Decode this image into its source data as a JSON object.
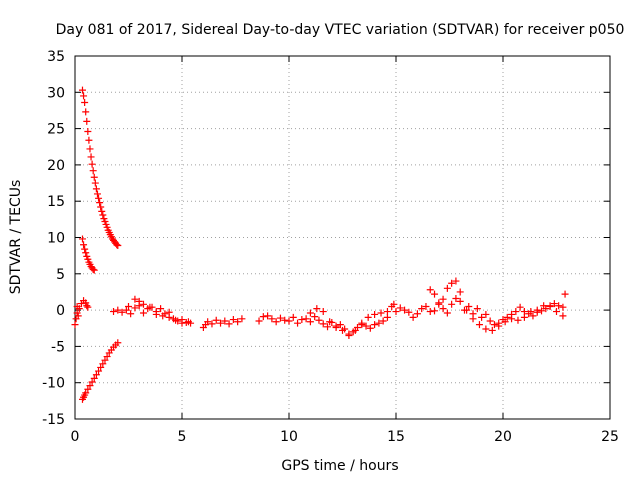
{
  "chart_data": {
    "type": "scatter",
    "title": "Day 081 of 2017, Sidereal Day-to-day VTEC variation (SDTVAR) for receiver p050",
    "xlabel": "GPS time / hours",
    "ylabel": "SDTVAR / TECUs",
    "xlim": [
      0,
      25
    ],
    "ylim": [
      -15,
      35
    ],
    "xticks": [
      0,
      5,
      10,
      15,
      20,
      25
    ],
    "yticks": [
      -15,
      -10,
      -5,
      0,
      5,
      10,
      15,
      20,
      25,
      30,
      35
    ],
    "grid": true,
    "marker": "plus",
    "color": "#ff0000",
    "series": [
      {
        "name": "upper decay arc",
        "x": [
          0.35,
          0.4,
          0.45,
          0.5,
          0.55,
          0.6,
          0.65,
          0.7,
          0.75,
          0.8,
          0.85,
          0.9,
          0.95,
          1.0,
          1.05,
          1.1,
          1.15,
          1.2,
          1.25,
          1.3,
          1.35,
          1.4,
          1.45,
          1.5,
          1.55,
          1.6,
          1.65,
          1.7,
          1.75,
          1.8,
          1.85,
          1.9,
          1.95,
          2.0
        ],
        "y": [
          30.3,
          29.5,
          28.6,
          27.3,
          26.0,
          24.6,
          23.4,
          22.2,
          21.1,
          20.1,
          19.2,
          18.3,
          17.5,
          16.7,
          16.0,
          15.4,
          14.8,
          14.2,
          13.6,
          13.1,
          12.6,
          12.2,
          11.8,
          11.4,
          11.0,
          10.7,
          10.4,
          10.1,
          9.8,
          9.6,
          9.4,
          9.2,
          9.0,
          8.9
        ]
      },
      {
        "name": "middle decay arc",
        "x": [
          0.35,
          0.4,
          0.45,
          0.5,
          0.55,
          0.6,
          0.65,
          0.7,
          0.75,
          0.8,
          0.85,
          0.9
        ],
        "y": [
          9.8,
          9.0,
          8.4,
          7.9,
          7.4,
          7.0,
          6.6,
          6.3,
          6.0,
          5.8,
          5.6,
          5.5
        ]
      },
      {
        "name": "lower rising arc",
        "x": [
          0.35,
          0.4,
          0.45,
          0.5,
          0.6,
          0.7,
          0.8,
          0.9,
          1.0,
          1.1,
          1.2,
          1.3,
          1.4,
          1.5,
          1.6,
          1.7,
          1.8,
          1.9,
          2.0
        ],
        "y": [
          -12.3,
          -12.0,
          -11.7,
          -11.4,
          -10.9,
          -10.4,
          -9.9,
          -9.4,
          -8.9,
          -8.4,
          -7.9,
          -7.4,
          -6.9,
          -6.4,
          -5.9,
          -5.5,
          -5.1,
          -4.8,
          -4.5
        ]
      },
      {
        "name": "early scattered",
        "x": [
          0.0,
          0.05,
          0.1,
          0.1,
          0.15,
          0.2,
          0.3,
          0.4,
          0.5,
          0.55,
          0.6
        ],
        "y": [
          -2.0,
          -1.2,
          -0.4,
          0.5,
          -0.8,
          0.2,
          0.9,
          1.3,
          1.0,
          0.6,
          0.4
        ]
      },
      {
        "name": "main trace",
        "x": [
          1.8,
          2.0,
          2.2,
          2.4,
          2.5,
          2.6,
          2.8,
          3.0,
          3.2,
          3.4,
          3.6,
          3.8,
          4.0,
          4.2,
          4.4,
          4.6,
          4.8,
          5.0,
          5.2,
          5.4,
          6.0,
          6.1,
          6.2,
          6.4,
          6.6,
          6.8,
          7.0,
          7.2,
          7.4,
          7.6,
          7.8,
          8.6,
          8.8,
          9.0,
          9.2,
          9.4,
          9.6,
          9.8,
          10.0,
          10.2,
          10.4,
          10.6,
          10.8,
          11.0,
          11.2,
          11.4,
          11.6,
          11.8,
          12.0,
          12.2,
          12.4,
          12.6,
          12.8,
          13.0,
          13.2,
          13.4,
          13.6,
          13.8,
          14.0,
          14.2,
          14.4,
          14.6,
          14.8,
          15.0,
          15.2,
          15.4,
          15.6,
          15.8,
          16.0,
          16.2,
          16.4,
          16.6,
          16.8,
          17.0,
          17.2,
          17.4,
          17.6,
          17.8,
          18.0,
          18.2,
          18.4,
          18.6,
          18.8,
          19.0,
          19.2,
          19.4,
          19.6,
          19.8,
          20.0,
          20.2,
          20.4,
          20.6,
          20.8,
          21.0,
          21.2,
          21.4,
          21.6,
          21.8,
          22.0,
          22.2,
          22.4,
          22.6,
          22.8,
          22.9
        ],
        "y": [
          -0.2,
          0.0,
          -0.3,
          0.0,
          0.5,
          -0.5,
          0.3,
          0.6,
          -0.4,
          0.2,
          0.4,
          -0.6,
          0.2,
          -0.5,
          -0.3,
          -1.2,
          -1.5,
          -1.3,
          -1.7,
          -1.8,
          -2.4,
          -2.0,
          -1.6,
          -1.9,
          -1.4,
          -1.8,
          -1.5,
          -1.9,
          -1.3,
          -1.6,
          -1.2,
          -1.5,
          -0.9,
          -0.8,
          -1.2,
          -1.6,
          -1.1,
          -1.4,
          -1.5,
          -1.0,
          -1.8,
          -1.3,
          -1.2,
          -1.6,
          -0.9,
          -1.4,
          -1.9,
          -2.3,
          -1.7,
          -2.4,
          -2.0,
          -2.6,
          -3.3,
          -3.0,
          -2.4,
          -2.0,
          -2.2,
          -2.5,
          -2.0,
          -1.8,
          -1.5,
          -1.0,
          0.5,
          -0.2,
          0.3,
          0.0,
          -0.3,
          -1.0,
          -0.5,
          0.2,
          0.5,
          -0.2,
          -0.1,
          0.8,
          1.5,
          3.0,
          3.7,
          4.0,
          2.5,
          0.0,
          0.5,
          -0.5,
          0.2,
          -1.0,
          -0.6,
          -1.5,
          -2.0,
          -1.8,
          -1.3,
          -1.0,
          -0.6,
          -0.2,
          0.4,
          -0.2,
          -0.5,
          -0.8,
          -0.3,
          -0.1,
          0.2,
          0.5,
          0.9,
          0.6,
          0.4,
          2.2
        ]
      },
      {
        "name": "secondary trace",
        "x": [
          2.8,
          3.0,
          3.2,
          3.5,
          3.8,
          4.1,
          4.4,
          4.7,
          5.0,
          5.3,
          11.0,
          11.3,
          11.6,
          11.9,
          12.2,
          12.5,
          12.8,
          13.1,
          13.4,
          13.7,
          14.0,
          14.3,
          14.6,
          14.9,
          16.6,
          16.8,
          17.0,
          17.2,
          17.4,
          17.6,
          17.8,
          18.0,
          18.3,
          18.6,
          18.9,
          19.2,
          19.5,
          19.8,
          20.1,
          20.4,
          20.7,
          21.0,
          21.3,
          21.6,
          21.9,
          22.2,
          22.5,
          22.8
        ],
        "y": [
          1.5,
          1.2,
          0.8,
          0.4,
          -0.2,
          -0.8,
          -1.0,
          -1.4,
          -1.8,
          -1.6,
          -0.4,
          0.2,
          -0.2,
          -1.6,
          -2.2,
          -2.8,
          -3.5,
          -2.8,
          -1.8,
          -1.0,
          -0.6,
          -0.4,
          -0.2,
          0.8,
          2.8,
          2.2,
          1.0,
          0.2,
          -0.4,
          0.8,
          1.6,
          1.2,
          0.0,
          -1.2,
          -2.0,
          -2.6,
          -2.8,
          -2.2,
          -1.6,
          -1.2,
          -1.4,
          -1.0,
          -0.2,
          0.0,
          0.6,
          0.6,
          -0.2,
          -0.8
        ]
      }
    ]
  }
}
